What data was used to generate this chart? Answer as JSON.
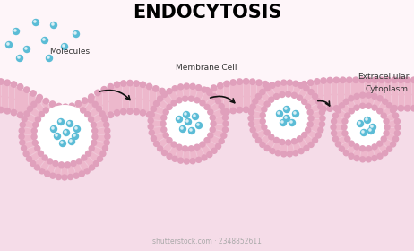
{
  "title": "ENDOCYTOSIS",
  "title_fontsize": 15,
  "title_weight": "bold",
  "bg_top": "#ffffff",
  "bg_bottom": "#f5dce8",
  "membrane_fill": "#edb8cc",
  "membrane_bead": "#e0a0bc",
  "membrane_line": "#c888a8",
  "lipid_tail_color": "#f0c8d8",
  "vesicle_inner": "#ffffff",
  "molecule_color": "#5bbcd6",
  "molecule_highlight": "#a8dff0",
  "arrow_color": "#111111",
  "label_color": "#333333",
  "label_fontsize": 6.5,
  "extracellular_label": "Extracellular",
  "cytoplasm_label": "Cytoplasm",
  "membrane_label": "Membrane Cell",
  "molecules_label": "Molecules",
  "watermark": "shutterstock.com · 2348852611",
  "watermark_color": "#aaaaaa"
}
